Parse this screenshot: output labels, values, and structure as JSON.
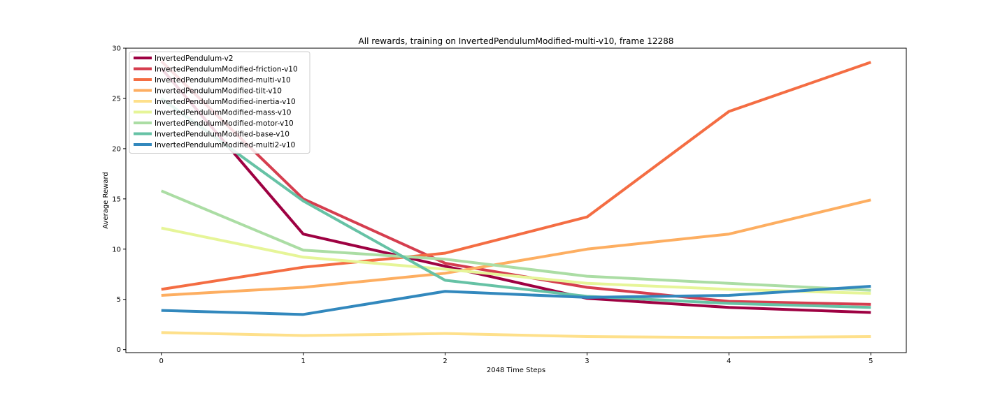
{
  "chart_data": {
    "type": "line",
    "title": "All rewards, training on InvertedPendulumModified-multi-v10, frame 12288",
    "xlabel": "2048 Time Steps",
    "ylabel": "Average Reward",
    "xlim": [
      -0.25,
      5.25
    ],
    "ylim": [
      -0.3,
      30
    ],
    "xticks": [
      0,
      1,
      2,
      3,
      4,
      5
    ],
    "yticks": [
      0,
      5,
      10,
      15,
      20,
      25,
      30
    ],
    "grid": false,
    "legend_position": "upper-left",
    "x": [
      0,
      1,
      2,
      3,
      4,
      5
    ],
    "series": [
      {
        "name": "InvertedPendulum-v2",
        "color": "#9e0142",
        "values": [
          28.0,
          11.5,
          8.3,
          5.1,
          4.2,
          3.7
        ]
      },
      {
        "name": "InvertedPendulumModified-friction-v10",
        "color": "#d53e4f",
        "values": [
          28.7,
          15.0,
          8.6,
          6.2,
          4.8,
          4.5
        ]
      },
      {
        "name": "InvertedPendulumModified-multi-v10",
        "color": "#f46d43",
        "values": [
          6.0,
          8.2,
          9.6,
          13.2,
          23.7,
          28.6
        ]
      },
      {
        "name": "InvertedPendulumModified-tilt-v10",
        "color": "#fdae61",
        "values": [
          5.4,
          6.2,
          7.6,
          10.0,
          11.5,
          14.9
        ]
      },
      {
        "name": "InvertedPendulumModified-inertia-v10",
        "color": "#fee08b",
        "values": [
          1.7,
          1.4,
          1.6,
          1.3,
          1.2,
          1.3
        ]
      },
      {
        "name": "InvertedPendulumModified-mass-v10",
        "color": "#e6f598",
        "values": [
          12.1,
          9.2,
          8.0,
          6.6,
          6.0,
          5.6
        ]
      },
      {
        "name": "InvertedPendulumModified-motor-v10",
        "color": "#abdda4",
        "values": [
          15.8,
          9.9,
          9.0,
          7.3,
          6.6,
          5.9
        ]
      },
      {
        "name": "InvertedPendulumModified-base-v10",
        "color": "#66c2a5",
        "values": [
          25.0,
          14.8,
          6.9,
          5.3,
          4.6,
          4.2
        ]
      },
      {
        "name": "InvertedPendulumModified-multi2-v10",
        "color": "#3288bd",
        "values": [
          3.9,
          3.5,
          5.8,
          5.2,
          5.4,
          6.3
        ]
      }
    ]
  }
}
